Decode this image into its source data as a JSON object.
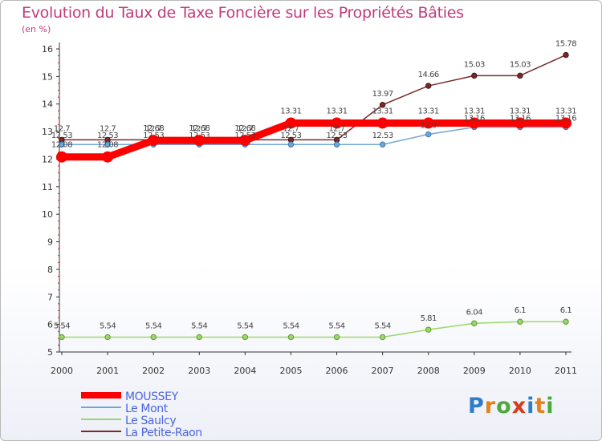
{
  "title": "Evolution du Taux de Taxe Foncière sur les Propriétés Bâties",
  "unit": "(en %)",
  "logo": {
    "letters": [
      "P",
      "r",
      "o",
      "x",
      "i",
      "t",
      "i"
    ],
    "colors": [
      "#2d7dc9",
      "#e5801a",
      "#4ea93a",
      "#d63b1c",
      "#2d7dc9",
      "#e5801a",
      "#4ea93a"
    ]
  },
  "chart_data": {
    "type": "line",
    "x": [
      "2000",
      "2001",
      "2002",
      "2003",
      "2004",
      "2005",
      "2006",
      "2007",
      "2008",
      "2009",
      "2010",
      "2011"
    ],
    "ylim": [
      5,
      16
    ],
    "yticks": [
      "5",
      "6",
      "7",
      "8",
      "9",
      "10",
      "11",
      "12",
      "13",
      "14",
      "15",
      "16"
    ],
    "grid": false,
    "legend_position": "bottom-left",
    "series": [
      {
        "name": "MOUSSEY",
        "color": "#ff0000",
        "width": 9,
        "values": [
          12.08,
          12.08,
          12.68,
          12.68,
          12.68,
          13.31,
          13.31,
          13.31,
          13.31,
          13.31,
          13.31,
          13.31
        ],
        "labels": [
          "12.08",
          "12.08",
          "12.68",
          "12.68",
          "12.68",
          "13.31",
          "13.31",
          "13.31",
          "13.31",
          "13.31",
          "13.31",
          "13.31"
        ]
      },
      {
        "name": "Le Mont",
        "color": "#6da7d8",
        "width": 1.5,
        "values": [
          12.53,
          12.53,
          12.53,
          12.53,
          12.53,
          12.53,
          12.53,
          12.53,
          12.9,
          13.16,
          13.16,
          13.16
        ],
        "labels": [
          "12.53",
          "12.53",
          "12.53",
          "12.53",
          "12.53",
          "12.53",
          "12.53",
          "12.53",
          "12.9",
          "13.16",
          "13.16",
          "13.16"
        ]
      },
      {
        "name": "Le Saulcy",
        "color": "#9bd66b",
        "width": 1.5,
        "values": [
          5.54,
          5.54,
          5.54,
          5.54,
          5.54,
          5.54,
          5.54,
          5.54,
          5.81,
          6.04,
          6.1,
          6.1
        ],
        "labels": [
          "5.54",
          "5.54",
          "5.54",
          "5.54",
          "5.54",
          "5.54",
          "5.54",
          "5.54",
          "5.81",
          "6.04",
          "6.1",
          "6.1"
        ]
      },
      {
        "name": "La Petite-Raon",
        "color": "#7a2a2a",
        "width": 1.5,
        "values": [
          12.7,
          12.7,
          12.7,
          12.7,
          12.7,
          12.7,
          12.7,
          13.97,
          14.66,
          15.03,
          15.03,
          15.78
        ],
        "labels": [
          "12.7",
          "12.7",
          "12.7",
          "12.7",
          "12.7",
          "12.7",
          "12.7",
          "13.97",
          "14.66",
          "15.03",
          "15.03",
          "15.78"
        ]
      }
    ]
  }
}
